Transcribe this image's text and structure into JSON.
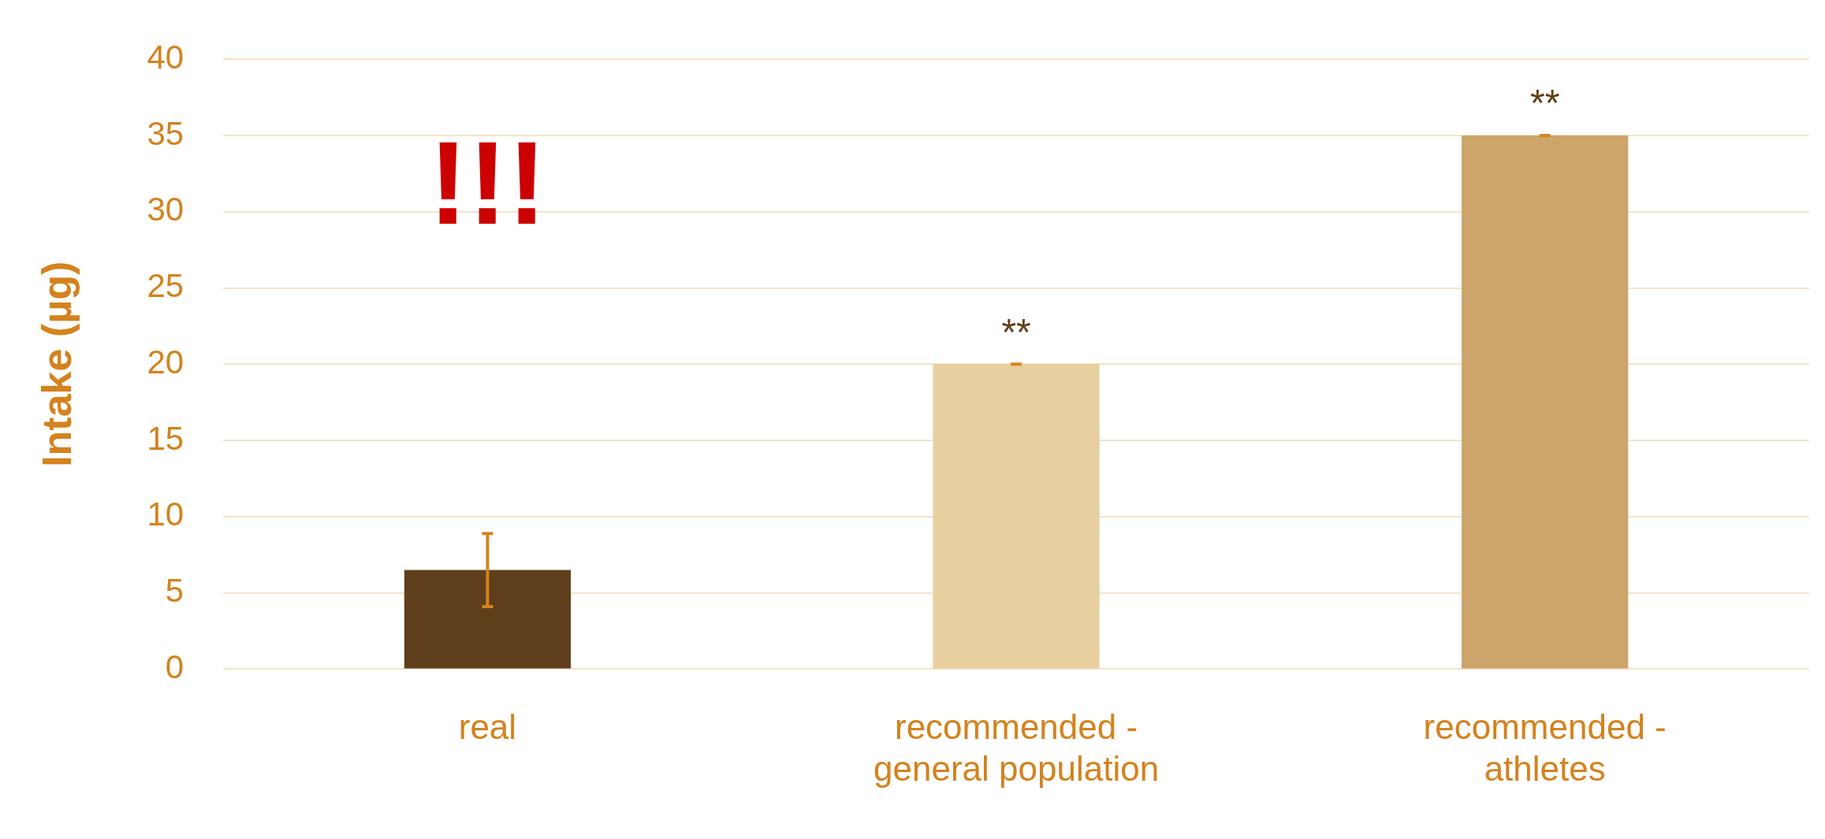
{
  "chart_data": {
    "type": "bar",
    "ylabel": "Intake (µg)",
    "categories": [
      "real",
      "recommended - general population",
      "recommended - athletes"
    ],
    "values": [
      6.5,
      20,
      35
    ],
    "colors": [
      "#5f3f1b",
      "#e8cf9f",
      "#cda46a"
    ],
    "errors": [
      2.4,
      0,
      0
    ],
    "ylim": [
      0,
      40
    ],
    "yticks": [
      0,
      5,
      10,
      15,
      20,
      25,
      30,
      35,
      40
    ],
    "grid": "y",
    "legend": false,
    "annotations": [
      "!!!",
      {
        "text": "**",
        "x": "recommended - general population",
        "y": 20
      },
      {
        "text": "**",
        "x": "recommended - athletes",
        "y": 35
      }
    ]
  }
}
